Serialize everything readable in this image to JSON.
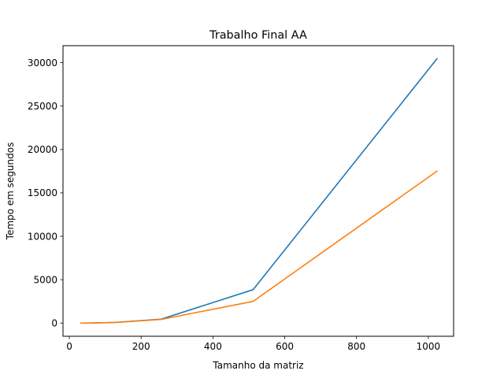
{
  "chart_data": {
    "type": "line",
    "title": "Trabalho Final AA",
    "xlabel": "Tamanho da matriz",
    "ylabel": "Tempo em segundos",
    "xlim": [
      -17.6,
      1070.4
    ],
    "ylim": [
      -1520,
      31960
    ],
    "xticks": [
      0,
      200,
      400,
      600,
      800,
      1000
    ],
    "yticks": [
      0,
      5000,
      10000,
      15000,
      20000,
      25000,
      30000
    ],
    "grid": false,
    "legend": "none",
    "series": [
      {
        "name": "series-1",
        "color": "#1f77b4",
        "x": [
          32,
          64,
          128,
          256,
          512,
          1024
        ],
        "y": [
          0,
          10,
          80,
          450,
          3850,
          30450
        ]
      },
      {
        "name": "series-2",
        "color": "#ff7f0e",
        "x": [
          32,
          64,
          128,
          256,
          512,
          1024
        ],
        "y": [
          0,
          8,
          60,
          420,
          2500,
          17500
        ]
      }
    ]
  }
}
